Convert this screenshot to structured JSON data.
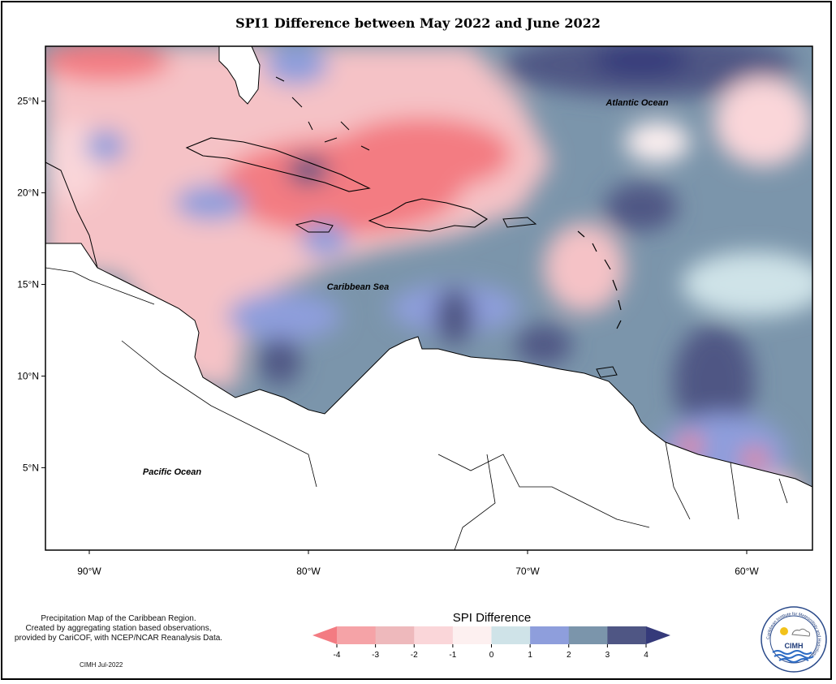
{
  "title": "SPI1 Difference between May 2022 and June 2022",
  "map": {
    "lon_range": [
      -92,
      -57
    ],
    "lat_range": [
      0.5,
      28
    ],
    "x_ticks": [
      {
        "value": -90,
        "label": "90°W"
      },
      {
        "value": -80,
        "label": "80°W"
      },
      {
        "value": -70,
        "label": "70°W"
      },
      {
        "value": -60,
        "label": "60°W"
      }
    ],
    "y_ticks": [
      {
        "value": 25,
        "label": "25°N"
      },
      {
        "value": 20,
        "label": "20°N"
      },
      {
        "value": 15,
        "label": "15°N"
      },
      {
        "value": 10,
        "label": "10°N"
      },
      {
        "value": 5,
        "label": "5°N"
      }
    ],
    "place_labels": [
      {
        "text": "Atlantic Ocean"
      },
      {
        "text": "Caribbean Sea"
      },
      {
        "text": "Pacific Ocean"
      }
    ]
  },
  "legend": {
    "title": "SPI Difference",
    "ticks": [
      "-4",
      "-3",
      "-2",
      "-1",
      "0",
      "1",
      "2",
      "3",
      "4"
    ],
    "colors": [
      "#f37b82",
      "#f5a3a7",
      "#eeb9bc",
      "#fad6d9",
      "#fdf0f0",
      "#cfe3e8",
      "#8e9edc",
      "#7b95ab",
      "#4f5684",
      "#353a7a"
    ]
  },
  "credit": {
    "line1": "Precipitation Map of the Caribbean Region.",
    "line2": "Created by aggregating station based observations,",
    "line3": "provided by CariCOF, with NCEP/NCAR Reanalysis Data.",
    "stamp": "CIMH Jul-2022"
  },
  "logo": {
    "acronym": "CIMH",
    "ring_text": "Caribbean Institute for Meteorology and Hydrology"
  }
}
